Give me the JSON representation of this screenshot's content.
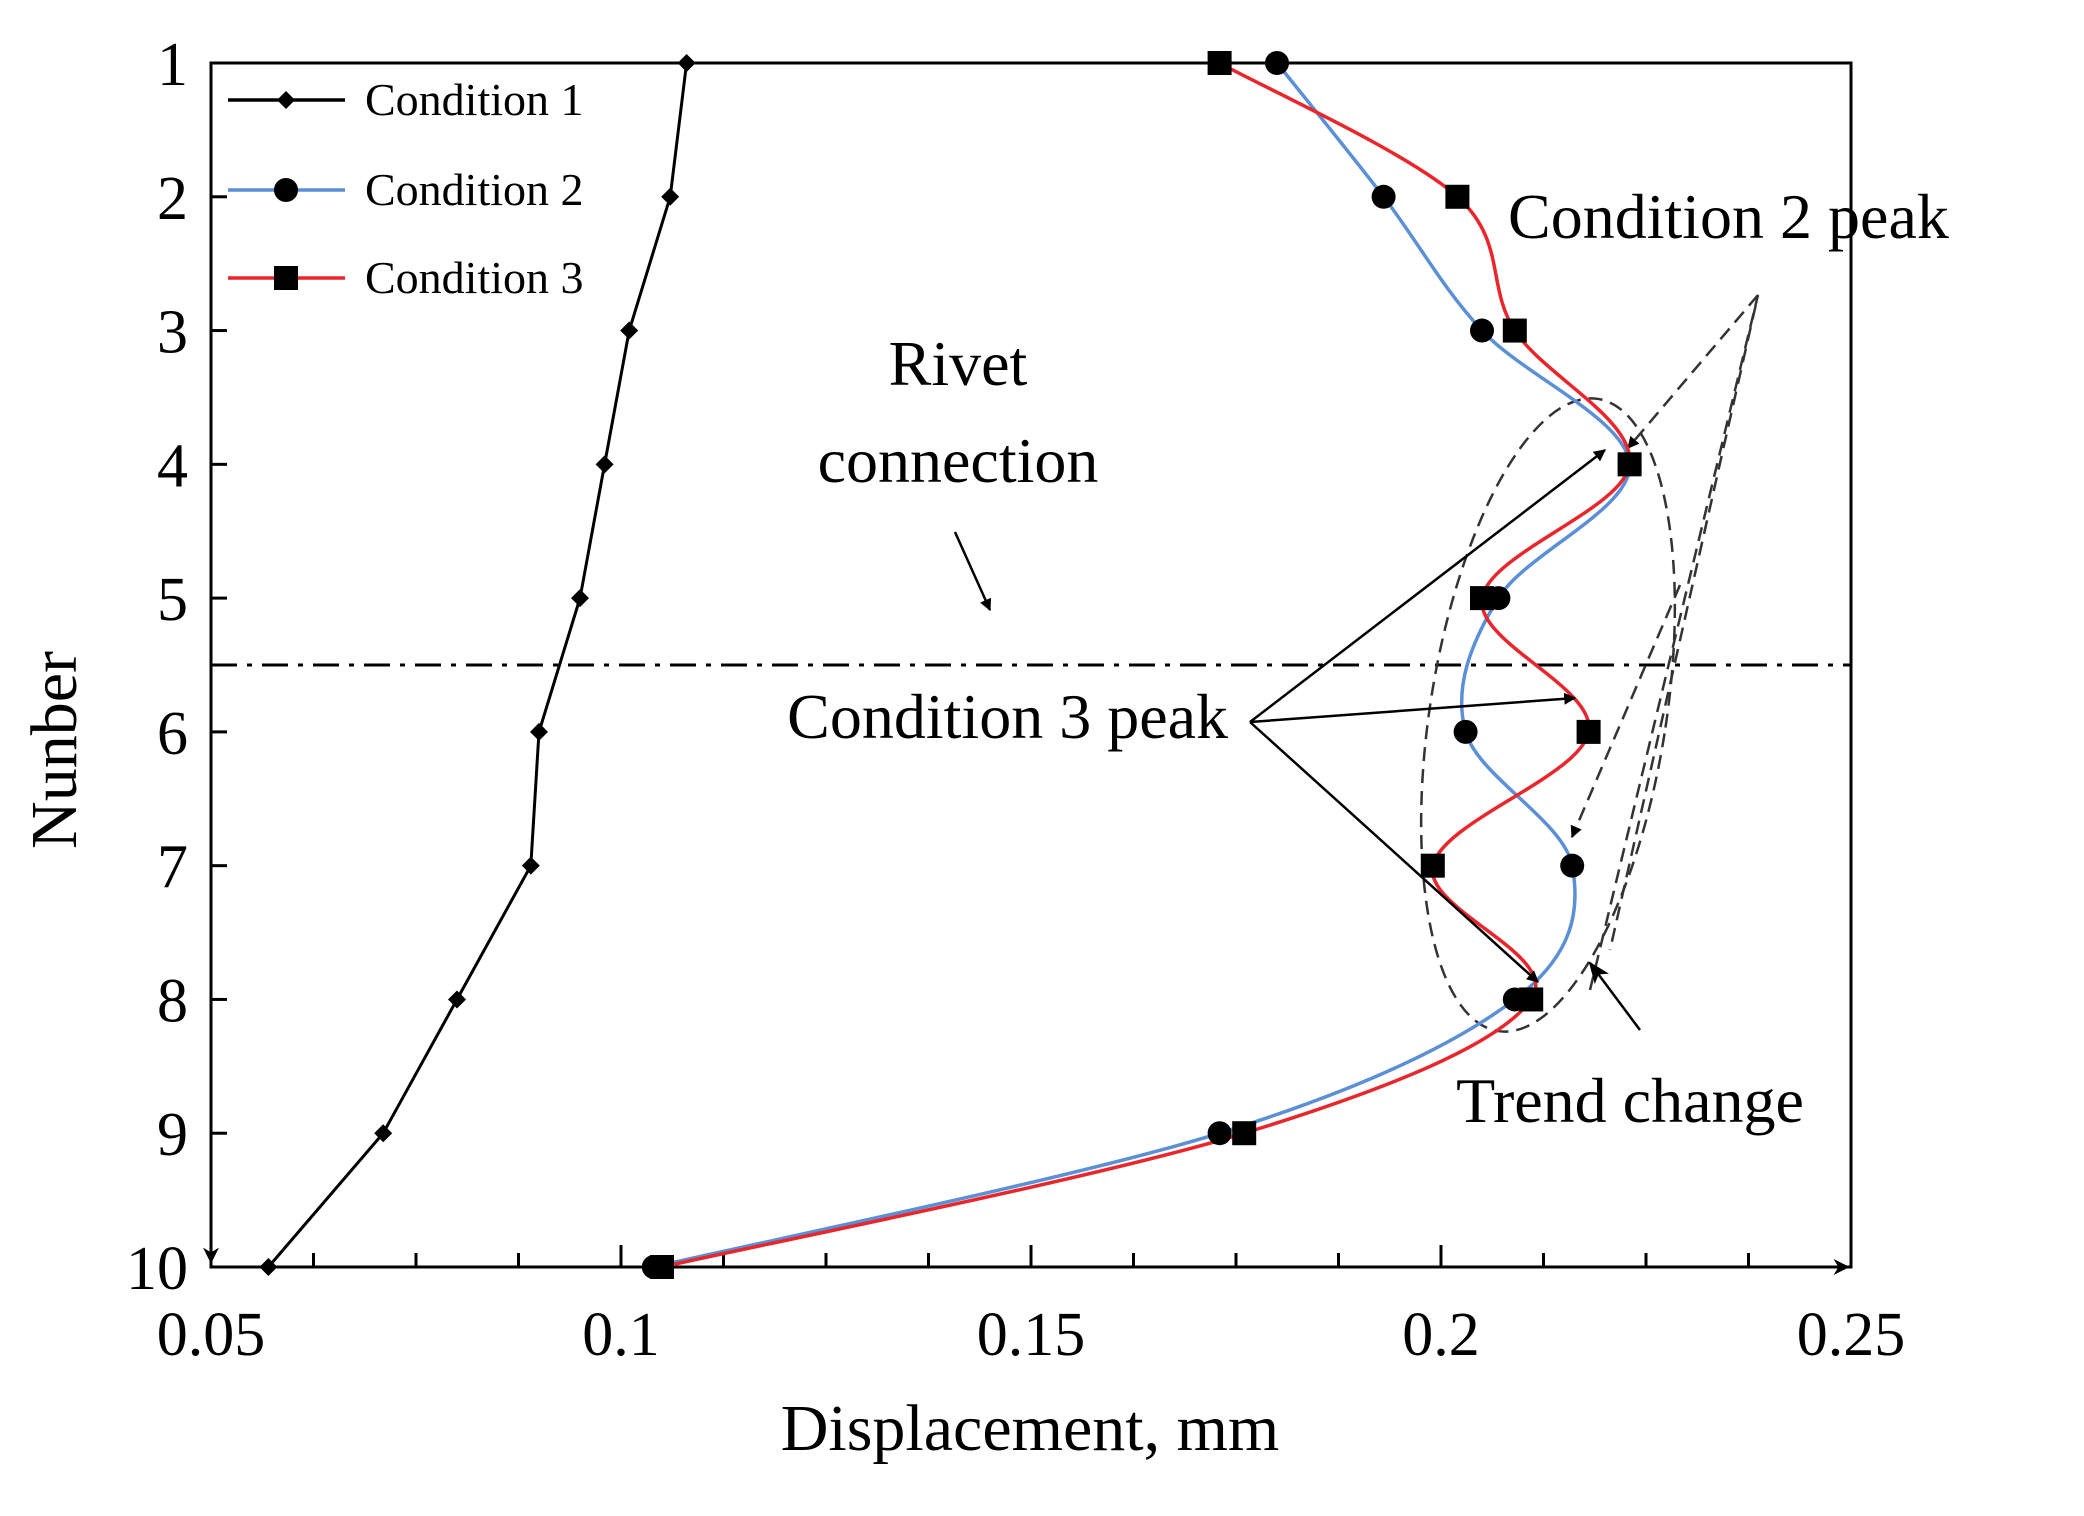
{
  "chart_data": {
    "type": "line",
    "title": "",
    "xlabel": "Displacement, mm",
    "ylabel": "Nunber",
    "xlim": [
      0.05,
      0.25
    ],
    "ylim": [
      1,
      10
    ],
    "x_ticks": [
      0.05,
      0.1,
      0.15,
      0.2,
      0.25
    ],
    "x_tick_labels": [
      "0.05",
      "0.1",
      "0.15",
      "0.2",
      "0.25"
    ],
    "y_ticks": [
      1,
      2,
      3,
      4,
      5,
      6,
      7,
      8,
      9,
      10
    ],
    "y_tick_labels": [
      "1",
      "2",
      "3",
      "4",
      "5",
      "6",
      "7",
      "8",
      "9",
      "10"
    ],
    "y_inverted": true,
    "grid": false,
    "legend_position": "top-left",
    "series": [
      {
        "name": "Condition 1",
        "color": "#000000",
        "marker": "diamond",
        "y": [
          1,
          2,
          3,
          4,
          5,
          6,
          7,
          8,
          9,
          10
        ],
        "values": [
          0.108,
          0.106,
          0.101,
          0.098,
          0.095,
          0.09,
          0.089,
          0.08,
          0.071,
          0.057
        ]
      },
      {
        "name": "Condition 2",
        "color": "#5b8fd6",
        "marker": "circle",
        "y": [
          1,
          2,
          3,
          4,
          5,
          6,
          7,
          8,
          9,
          10
        ],
        "values": [
          0.18,
          0.193,
          0.205,
          0.223,
          0.207,
          0.203,
          0.216,
          0.209,
          0.173,
          0.104
        ]
      },
      {
        "name": "Condition 3",
        "color": "#e8262b",
        "marker": "square",
        "y": [
          1,
          2,
          3,
          4,
          5,
          6,
          7,
          8,
          9,
          10
        ],
        "values": [
          0.173,
          0.202,
          0.209,
          0.223,
          0.205,
          0.218,
          0.199,
          0.211,
          0.176,
          0.105
        ]
      }
    ],
    "reference_line": {
      "y": 5.5,
      "style": "dash-dot"
    },
    "annotations": [
      {
        "text_lines": [
          "Rivet",
          "connection"
        ]
      },
      {
        "text_lines": [
          "Condition 2 peak"
        ]
      },
      {
        "text_lines": [
          "Condition 3 peak"
        ]
      },
      {
        "text_lines": [
          "Trend change"
        ]
      }
    ]
  }
}
